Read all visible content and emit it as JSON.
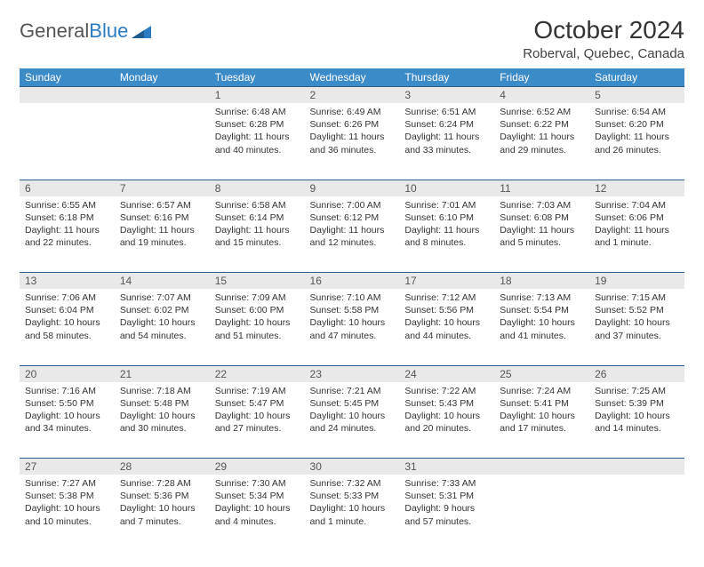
{
  "logo": {
    "part1": "General",
    "part2": "Blue"
  },
  "title": "October 2024",
  "location": "Roberval, Quebec, Canada",
  "day_headers": [
    "Sunday",
    "Monday",
    "Tuesday",
    "Wednesday",
    "Thursday",
    "Friday",
    "Saturday"
  ],
  "colors": {
    "header_bg": "#3b8bc9",
    "header_text": "#ffffff",
    "daynum_bg": "#e9e9e9",
    "border": "#2b5f8a",
    "logo_blue": "#2b7bc0"
  },
  "weeks": [
    [
      {
        "n": "",
        "sr": "",
        "ss": "",
        "dl": ""
      },
      {
        "n": "",
        "sr": "",
        "ss": "",
        "dl": ""
      },
      {
        "n": "1",
        "sr": "Sunrise: 6:48 AM",
        "ss": "Sunset: 6:28 PM",
        "dl": "Daylight: 11 hours and 40 minutes."
      },
      {
        "n": "2",
        "sr": "Sunrise: 6:49 AM",
        "ss": "Sunset: 6:26 PM",
        "dl": "Daylight: 11 hours and 36 minutes."
      },
      {
        "n": "3",
        "sr": "Sunrise: 6:51 AM",
        "ss": "Sunset: 6:24 PM",
        "dl": "Daylight: 11 hours and 33 minutes."
      },
      {
        "n": "4",
        "sr": "Sunrise: 6:52 AM",
        "ss": "Sunset: 6:22 PM",
        "dl": "Daylight: 11 hours and 29 minutes."
      },
      {
        "n": "5",
        "sr": "Sunrise: 6:54 AM",
        "ss": "Sunset: 6:20 PM",
        "dl": "Daylight: 11 hours and 26 minutes."
      }
    ],
    [
      {
        "n": "6",
        "sr": "Sunrise: 6:55 AM",
        "ss": "Sunset: 6:18 PM",
        "dl": "Daylight: 11 hours and 22 minutes."
      },
      {
        "n": "7",
        "sr": "Sunrise: 6:57 AM",
        "ss": "Sunset: 6:16 PM",
        "dl": "Daylight: 11 hours and 19 minutes."
      },
      {
        "n": "8",
        "sr": "Sunrise: 6:58 AM",
        "ss": "Sunset: 6:14 PM",
        "dl": "Daylight: 11 hours and 15 minutes."
      },
      {
        "n": "9",
        "sr": "Sunrise: 7:00 AM",
        "ss": "Sunset: 6:12 PM",
        "dl": "Daylight: 11 hours and 12 minutes."
      },
      {
        "n": "10",
        "sr": "Sunrise: 7:01 AM",
        "ss": "Sunset: 6:10 PM",
        "dl": "Daylight: 11 hours and 8 minutes."
      },
      {
        "n": "11",
        "sr": "Sunrise: 7:03 AM",
        "ss": "Sunset: 6:08 PM",
        "dl": "Daylight: 11 hours and 5 minutes."
      },
      {
        "n": "12",
        "sr": "Sunrise: 7:04 AM",
        "ss": "Sunset: 6:06 PM",
        "dl": "Daylight: 11 hours and 1 minute."
      }
    ],
    [
      {
        "n": "13",
        "sr": "Sunrise: 7:06 AM",
        "ss": "Sunset: 6:04 PM",
        "dl": "Daylight: 10 hours and 58 minutes."
      },
      {
        "n": "14",
        "sr": "Sunrise: 7:07 AM",
        "ss": "Sunset: 6:02 PM",
        "dl": "Daylight: 10 hours and 54 minutes."
      },
      {
        "n": "15",
        "sr": "Sunrise: 7:09 AM",
        "ss": "Sunset: 6:00 PM",
        "dl": "Daylight: 10 hours and 51 minutes."
      },
      {
        "n": "16",
        "sr": "Sunrise: 7:10 AM",
        "ss": "Sunset: 5:58 PM",
        "dl": "Daylight: 10 hours and 47 minutes."
      },
      {
        "n": "17",
        "sr": "Sunrise: 7:12 AM",
        "ss": "Sunset: 5:56 PM",
        "dl": "Daylight: 10 hours and 44 minutes."
      },
      {
        "n": "18",
        "sr": "Sunrise: 7:13 AM",
        "ss": "Sunset: 5:54 PM",
        "dl": "Daylight: 10 hours and 41 minutes."
      },
      {
        "n": "19",
        "sr": "Sunrise: 7:15 AM",
        "ss": "Sunset: 5:52 PM",
        "dl": "Daylight: 10 hours and 37 minutes."
      }
    ],
    [
      {
        "n": "20",
        "sr": "Sunrise: 7:16 AM",
        "ss": "Sunset: 5:50 PM",
        "dl": "Daylight: 10 hours and 34 minutes."
      },
      {
        "n": "21",
        "sr": "Sunrise: 7:18 AM",
        "ss": "Sunset: 5:48 PM",
        "dl": "Daylight: 10 hours and 30 minutes."
      },
      {
        "n": "22",
        "sr": "Sunrise: 7:19 AM",
        "ss": "Sunset: 5:47 PM",
        "dl": "Daylight: 10 hours and 27 minutes."
      },
      {
        "n": "23",
        "sr": "Sunrise: 7:21 AM",
        "ss": "Sunset: 5:45 PM",
        "dl": "Daylight: 10 hours and 24 minutes."
      },
      {
        "n": "24",
        "sr": "Sunrise: 7:22 AM",
        "ss": "Sunset: 5:43 PM",
        "dl": "Daylight: 10 hours and 20 minutes."
      },
      {
        "n": "25",
        "sr": "Sunrise: 7:24 AM",
        "ss": "Sunset: 5:41 PM",
        "dl": "Daylight: 10 hours and 17 minutes."
      },
      {
        "n": "26",
        "sr": "Sunrise: 7:25 AM",
        "ss": "Sunset: 5:39 PM",
        "dl": "Daylight: 10 hours and 14 minutes."
      }
    ],
    [
      {
        "n": "27",
        "sr": "Sunrise: 7:27 AM",
        "ss": "Sunset: 5:38 PM",
        "dl": "Daylight: 10 hours and 10 minutes."
      },
      {
        "n": "28",
        "sr": "Sunrise: 7:28 AM",
        "ss": "Sunset: 5:36 PM",
        "dl": "Daylight: 10 hours and 7 minutes."
      },
      {
        "n": "29",
        "sr": "Sunrise: 7:30 AM",
        "ss": "Sunset: 5:34 PM",
        "dl": "Daylight: 10 hours and 4 minutes."
      },
      {
        "n": "30",
        "sr": "Sunrise: 7:32 AM",
        "ss": "Sunset: 5:33 PM",
        "dl": "Daylight: 10 hours and 1 minute."
      },
      {
        "n": "31",
        "sr": "Sunrise: 7:33 AM",
        "ss": "Sunset: 5:31 PM",
        "dl": "Daylight: 9 hours and 57 minutes."
      },
      {
        "n": "",
        "sr": "",
        "ss": "",
        "dl": ""
      },
      {
        "n": "",
        "sr": "",
        "ss": "",
        "dl": ""
      }
    ]
  ]
}
